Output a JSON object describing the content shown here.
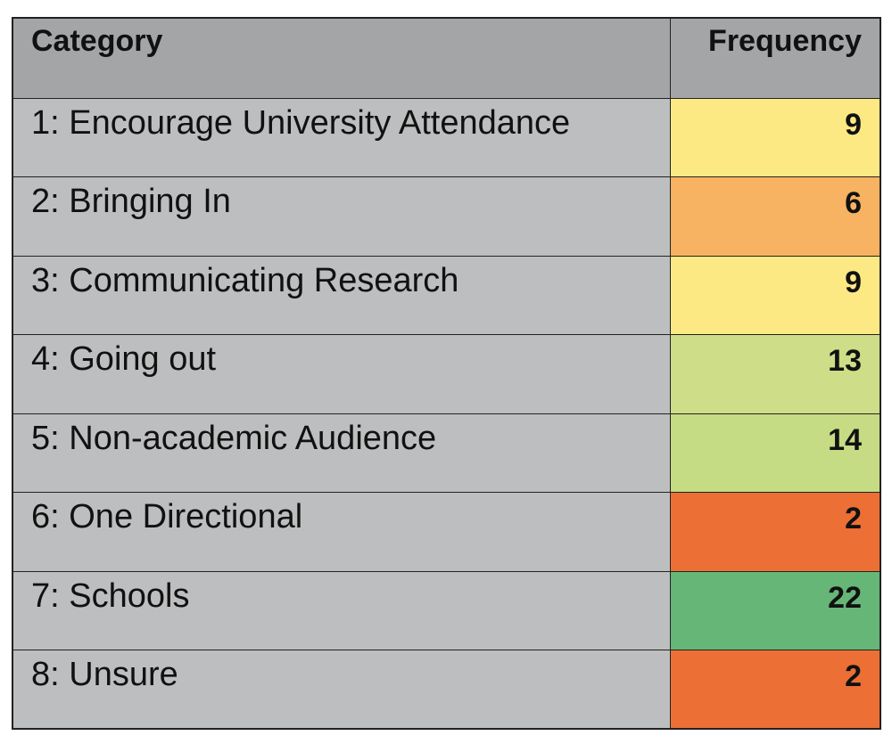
{
  "chart_data": {
    "type": "table",
    "columns": [
      "Category",
      "Frequency"
    ],
    "rows": [
      {
        "category": "1: Encourage University Attendance",
        "frequency": 9,
        "color": "#fde984"
      },
      {
        "category": "2: Bringing In",
        "frequency": 6,
        "color": "#f7b262"
      },
      {
        "category": "3: Communicating Research",
        "frequency": 9,
        "color": "#fde984"
      },
      {
        "category": "4: Going out",
        "frequency": 13,
        "color": "#cedd88"
      },
      {
        "category": "5: Non-academic Audience",
        "frequency": 14,
        "color": "#c5db84"
      },
      {
        "category": "6: One Directional",
        "frequency": 2,
        "color": "#ec6f35"
      },
      {
        "category": "7: Schools",
        "frequency": 22,
        "color": "#66b678"
      },
      {
        "category": "8: Unsure",
        "frequency": 2,
        "color": "#ec6f35"
      }
    ]
  },
  "colors": {
    "header_bg": "#a4a5a7",
    "category_bg": "#bdbebf",
    "border": "#222222"
  }
}
